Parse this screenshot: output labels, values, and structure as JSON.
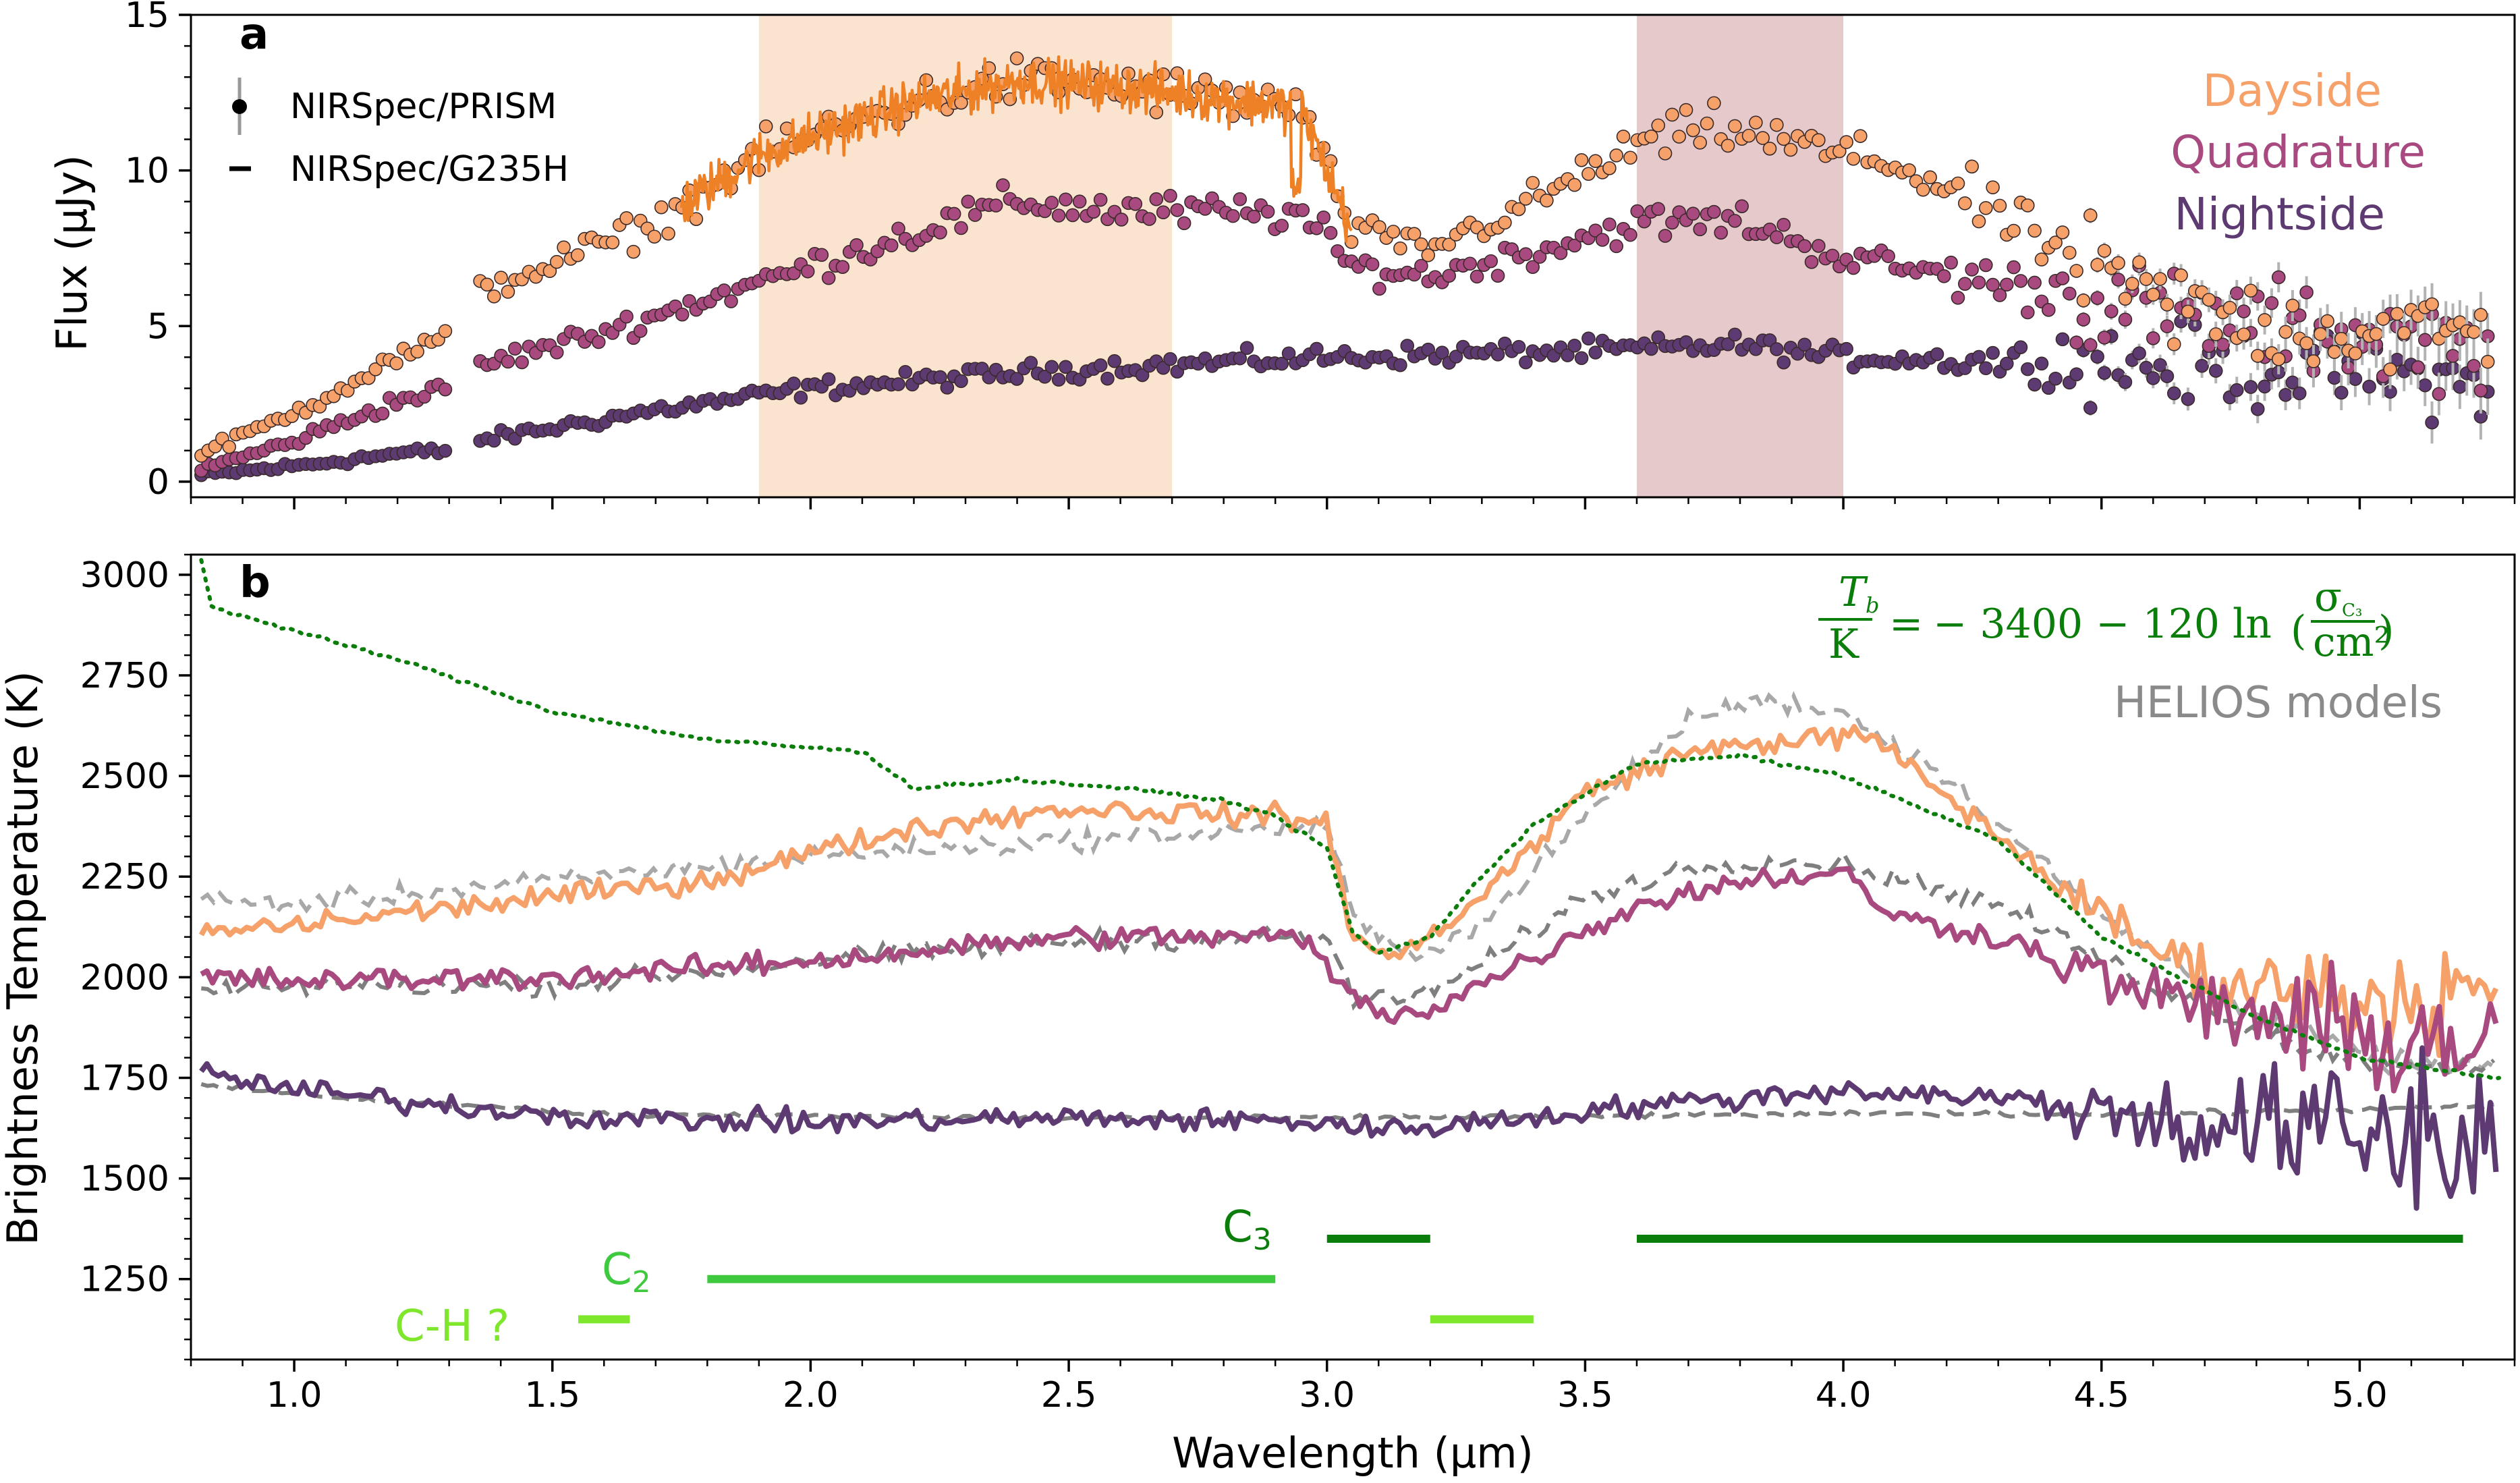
{
  "chart_data": [
    {
      "panel": "a",
      "type": "scatter",
      "xlabel": "",
      "ylabel": "Flux (µJy)",
      "xlim": [
        0.8,
        5.3
      ],
      "ylim": [
        -0.5,
        15
      ],
      "yticks": [
        0,
        5,
        10,
        15
      ],
      "legend": {
        "placement": "top-left",
        "entries": [
          {
            "marker": "circle-errorbar",
            "label": "NIRSpec/PRISM"
          },
          {
            "marker": "dash",
            "label": "NIRSpec/G235H"
          }
        ]
      },
      "series_labels_placement": "top-right",
      "shaded_regions": [
        {
          "x": [
            1.9,
            2.7
          ],
          "color": "#fae3cf"
        },
        {
          "x": [
            3.6,
            4.0
          ],
          "color": "#e6c9cb"
        }
      ],
      "series": [
        {
          "name": "Dayside",
          "color": "#f6a16a",
          "knots": [
            [
              0.82,
              0.9
            ],
            [
              1.0,
              2.2
            ],
            [
              1.2,
              4.0
            ],
            [
              1.3,
              4.6
            ],
            [
              1.35,
              6.1
            ],
            [
              1.5,
              7.0
            ],
            [
              1.7,
              8.3
            ],
            [
              1.9,
              10.5
            ],
            [
              2.2,
              12.2
            ],
            [
              2.4,
              12.9
            ],
            [
              2.6,
              12.7
            ],
            [
              2.95,
              12.0
            ],
            [
              3.05,
              8.0
            ],
            [
              3.2,
              7.5
            ],
            [
              3.4,
              9.0
            ],
            [
              3.6,
              10.8
            ],
            [
              3.75,
              11.4
            ],
            [
              3.95,
              10.7
            ],
            [
              4.1,
              10.2
            ],
            [
              4.3,
              8.6
            ],
            [
              4.5,
              6.5
            ],
            [
              4.7,
              5.3
            ],
            [
              5.0,
              4.8
            ],
            [
              5.25,
              4.8
            ]
          ],
          "g235h": {
            "xrange": [
              1.75,
              3.05
            ],
            "color": "#ee8126"
          }
        },
        {
          "name": "Quadrature",
          "color": "#a8497f",
          "knots": [
            [
              0.82,
              0.4
            ],
            [
              1.0,
              1.3
            ],
            [
              1.2,
              2.6
            ],
            [
              1.3,
              3.0
            ],
            [
              1.35,
              3.7
            ],
            [
              1.6,
              4.8
            ],
            [
              1.9,
              6.4
            ],
            [
              2.2,
              8.0
            ],
            [
              2.4,
              9.0
            ],
            [
              2.6,
              8.7
            ],
            [
              2.95,
              8.6
            ],
            [
              3.05,
              6.9
            ],
            [
              3.2,
              6.6
            ],
            [
              3.4,
              7.4
            ],
            [
              3.6,
              8.3
            ],
            [
              3.8,
              8.4
            ],
            [
              4.0,
              7.2
            ],
            [
              4.3,
              6.4
            ],
            [
              4.6,
              5.4
            ],
            [
              5.0,
              4.7
            ],
            [
              5.25,
              4.3
            ]
          ]
        },
        {
          "name": "Nightside",
          "color": "#5e3a72",
          "knots": [
            [
              0.82,
              0.2
            ],
            [
              1.0,
              0.5
            ],
            [
              1.2,
              0.9
            ],
            [
              1.3,
              1.0
            ],
            [
              1.35,
              1.3
            ],
            [
              1.7,
              2.3
            ],
            [
              2.0,
              3.0
            ],
            [
              2.5,
              3.6
            ],
            [
              3.0,
              4.0
            ],
            [
              3.5,
              4.2
            ],
            [
              3.8,
              4.4
            ],
            [
              4.0,
              4.0
            ],
            [
              4.5,
              3.8
            ],
            [
              5.0,
              3.5
            ],
            [
              5.25,
              3.1
            ]
          ]
        }
      ]
    },
    {
      "panel": "b",
      "type": "line",
      "xlabel": "Wavelength (µm)",
      "ylabel": "Brightness Temperature (K)",
      "xlim": [
        0.8,
        5.3
      ],
      "ylim": [
        1050,
        3050
      ],
      "yticks": [
        1250,
        1500,
        1750,
        2000,
        2250,
        2500,
        2750,
        3000
      ],
      "xticks": [
        "1.0",
        "1.5",
        "2.0",
        "2.5",
        "3.0",
        "3.5",
        "4.0",
        "4.5",
        "5.0"
      ],
      "series": [
        {
          "name": "Dayside",
          "color": "#f6a16a",
          "knots": [
            [
              0.82,
              2110
            ],
            [
              1.0,
              2130
            ],
            [
              1.5,
              2200
            ],
            [
              1.8,
              2240
            ],
            [
              2.0,
              2310
            ],
            [
              2.2,
              2370
            ],
            [
              2.5,
              2420
            ],
            [
              2.9,
              2400
            ],
            [
              3.0,
              2380
            ],
            [
              3.05,
              2110
            ],
            [
              3.1,
              2050
            ],
            [
              3.15,
              2060
            ],
            [
              3.3,
              2200
            ],
            [
              3.5,
              2460
            ],
            [
              3.7,
              2560
            ],
            [
              3.9,
              2590
            ],
            [
              4.05,
              2600
            ],
            [
              4.2,
              2450
            ],
            [
              4.5,
              2150
            ],
            [
              4.7,
              2000
            ],
            [
              5.0,
              1950
            ],
            [
              5.25,
              1950
            ]
          ]
        },
        {
          "name": "Quadrature",
          "color": "#a8497f",
          "knots": [
            [
              0.82,
              2000
            ],
            [
              1.0,
              1990
            ],
            [
              1.5,
              2000
            ],
            [
              2.0,
              2040
            ],
            [
              2.5,
              2100
            ],
            [
              2.95,
              2100
            ],
            [
              3.05,
              1950
            ],
            [
              3.1,
              1910
            ],
            [
              3.2,
              1920
            ],
            [
              3.4,
              2050
            ],
            [
              3.6,
              2180
            ],
            [
              3.8,
              2240
            ],
            [
              4.0,
              2260
            ],
            [
              4.1,
              2150
            ],
            [
              4.3,
              2100
            ],
            [
              4.6,
              1950
            ],
            [
              5.0,
              1850
            ],
            [
              5.25,
              1850
            ]
          ]
        },
        {
          "name": "Nightside",
          "color": "#5e3a72",
          "knots": [
            [
              0.82,
              1760
            ],
            [
              1.0,
              1720
            ],
            [
              1.3,
              1680
            ],
            [
              1.6,
              1650
            ],
            [
              2.0,
              1640
            ],
            [
              2.5,
              1650
            ],
            [
              3.0,
              1640
            ],
            [
              3.1,
              1620
            ],
            [
              3.3,
              1640
            ],
            [
              3.6,
              1680
            ],
            [
              3.8,
              1700
            ],
            [
              4.0,
              1720
            ],
            [
              4.3,
              1700
            ],
            [
              4.6,
              1650
            ],
            [
              5.0,
              1600
            ],
            [
              5.25,
              1600
            ]
          ]
        }
      ],
      "helios_models": [
        {
          "name": "HELIOS dayside",
          "color": "#a8a8a8",
          "knots": [
            [
              0.82,
              2190
            ],
            [
              1.0,
              2180
            ],
            [
              1.5,
              2240
            ],
            [
              2.0,
              2300
            ],
            [
              2.5,
              2340
            ],
            [
              2.9,
              2370
            ],
            [
              3.0,
              2380
            ],
            [
              3.05,
              2150
            ],
            [
              3.15,
              2050
            ],
            [
              3.3,
              2130
            ],
            [
              3.5,
              2400
            ],
            [
              3.7,
              2640
            ],
            [
              3.85,
              2690
            ],
            [
              4.0,
              2660
            ],
            [
              4.2,
              2500
            ],
            [
              4.5,
              2150
            ],
            [
              4.8,
              1900
            ],
            [
              5.05,
              1790
            ],
            [
              5.25,
              1780
            ]
          ]
        },
        {
          "name": "HELIOS quadrature",
          "color": "#7f7f7f",
          "knots": [
            [
              0.82,
              1960
            ],
            [
              1.0,
              1980
            ],
            [
              1.5,
              1980
            ],
            [
              2.0,
              2040
            ],
            [
              2.5,
              2090
            ],
            [
              2.95,
              2100
            ],
            [
              3.0,
              2100
            ],
            [
              3.05,
              1950
            ],
            [
              3.15,
              1940
            ],
            [
              3.3,
              2030
            ],
            [
              3.5,
              2200
            ],
            [
              3.7,
              2270
            ],
            [
              3.85,
              2290
            ],
            [
              4.0,
              2280
            ],
            [
              4.3,
              2180
            ],
            [
              4.6,
              1980
            ],
            [
              4.9,
              1820
            ],
            [
              5.1,
              1780
            ],
            [
              5.25,
              1780
            ]
          ]
        },
        {
          "name": "HELIOS nightside",
          "color": "#7f7f7f",
          "knots": [
            [
              0.82,
              1730
            ],
            [
              1.2,
              1690
            ],
            [
              1.6,
              1660
            ],
            [
              2.5,
              1650
            ],
            [
              3.0,
              1650
            ],
            [
              4.0,
              1660
            ],
            [
              4.5,
              1660
            ],
            [
              5.0,
              1670
            ],
            [
              5.25,
              1680
            ]
          ]
        }
      ],
      "formula_model": {
        "name": "C3 cross-section model",
        "color": "#0a7d0a",
        "knots": [
          [
            0.82,
            3040
          ],
          [
            0.84,
            2920
          ],
          [
            1.0,
            2860
          ],
          [
            1.2,
            2790
          ],
          [
            1.5,
            2660
          ],
          [
            1.8,
            2590
          ],
          [
            1.9,
            2580
          ],
          [
            2.1,
            2560
          ],
          [
            2.2,
            2470
          ],
          [
            2.4,
            2490
          ],
          [
            2.6,
            2470
          ],
          [
            2.8,
            2440
          ],
          [
            2.9,
            2400
          ],
          [
            3.0,
            2320
          ],
          [
            3.05,
            2110
          ],
          [
            3.1,
            2060
          ],
          [
            3.2,
            2100
          ],
          [
            3.3,
            2250
          ],
          [
            3.4,
            2380
          ],
          [
            3.6,
            2530
          ],
          [
            3.8,
            2550
          ],
          [
            4.0,
            2500
          ],
          [
            4.3,
            2340
          ],
          [
            4.5,
            2100
          ],
          [
            4.8,
            1900
          ],
          [
            5.0,
            1800
          ],
          [
            5.25,
            1750
          ]
        ]
      },
      "formula_label": {
        "lhs_num": "T",
        "lhs_num_sub": "b",
        "lhs_den": "K",
        "equals": "=",
        "rhs_main": "− 3400 − 120 ln",
        "rhs_num": "σ",
        "rhs_num_sub": "C₃",
        "rhs_den": "cm²"
      },
      "models_label": "HELIOS models",
      "absorption_bands": [
        {
          "label": "C₃",
          "color": "#0a7d0a",
          "ranges": [
            [
              3.0,
              3.2
            ],
            [
              3.6,
              5.2
            ]
          ],
          "level": 1350
        },
        {
          "label": "C₂",
          "color": "#3fc93f",
          "ranges": [
            [
              1.8,
              2.9
            ]
          ],
          "level": 1250
        },
        {
          "label": "C-H ?",
          "color": "#7ee62b",
          "ranges": [
            [
              1.55,
              1.65
            ],
            [
              3.2,
              3.4
            ]
          ],
          "level": 1150
        }
      ]
    }
  ],
  "panel_a_letter": "a",
  "panel_b_letter": "b",
  "legend_prism": "NIRSpec/PRISM",
  "legend_g235h": "NIRSpec/G235H",
  "label_dayside": "Dayside",
  "label_quadrature": "Quadrature",
  "label_nightside": "Nightside",
  "c3_label_main": "C",
  "c3_label_sub": "3",
  "c2_label_main": "C",
  "c2_label_sub": "2",
  "ch_label": "C-H ?",
  "colors": {
    "dayside": "#f6a16a",
    "quadrature": "#a8497f",
    "nightside": "#5e3a72",
    "g235h": "#ee8126",
    "formula": "#0a7d0a",
    "c3": "#0a7d0a",
    "c2": "#3fc93f",
    "ch": "#7ee62b"
  }
}
